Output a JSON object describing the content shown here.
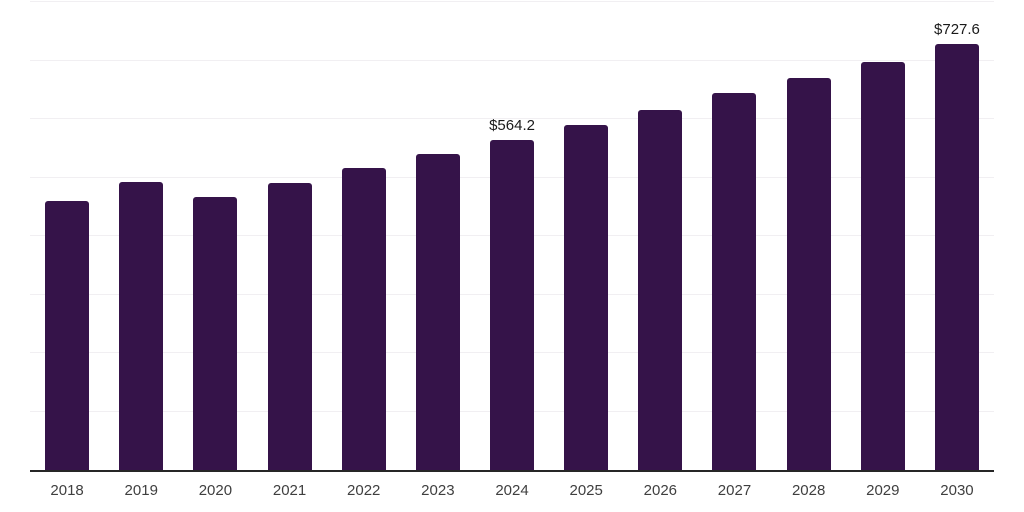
{
  "colors": {
    "bar": "#351349",
    "axis_line": "#262626",
    "gridline": "#f1eff2",
    "value_label": "#1a1a1a",
    "tick_label": "#3f3f3f",
    "background": "#ffffff"
  },
  "chart_data": {
    "type": "bar",
    "title": "",
    "xlabel": "",
    "ylabel": "",
    "categories": [
      "2018",
      "2019",
      "2020",
      "2021",
      "2022",
      "2023",
      "2024",
      "2025",
      "2026",
      "2027",
      "2028",
      "2029",
      "2030"
    ],
    "values": [
      460.0,
      492.5,
      467.5,
      491.0,
      516.5,
      540.0,
      564.2,
      589.5,
      615.0,
      644.0,
      670.0,
      697.0,
      727.6
    ],
    "data_labels": [
      "",
      "",
      "",
      "",
      "",
      "",
      "$564.2",
      "",
      "",
      "",
      "",
      "",
      "$727.6"
    ],
    "ylim": [
      0,
      800
    ],
    "gridline_step": 100,
    "grid": true,
    "legend": false,
    "y_axis_labels_visible": false
  }
}
